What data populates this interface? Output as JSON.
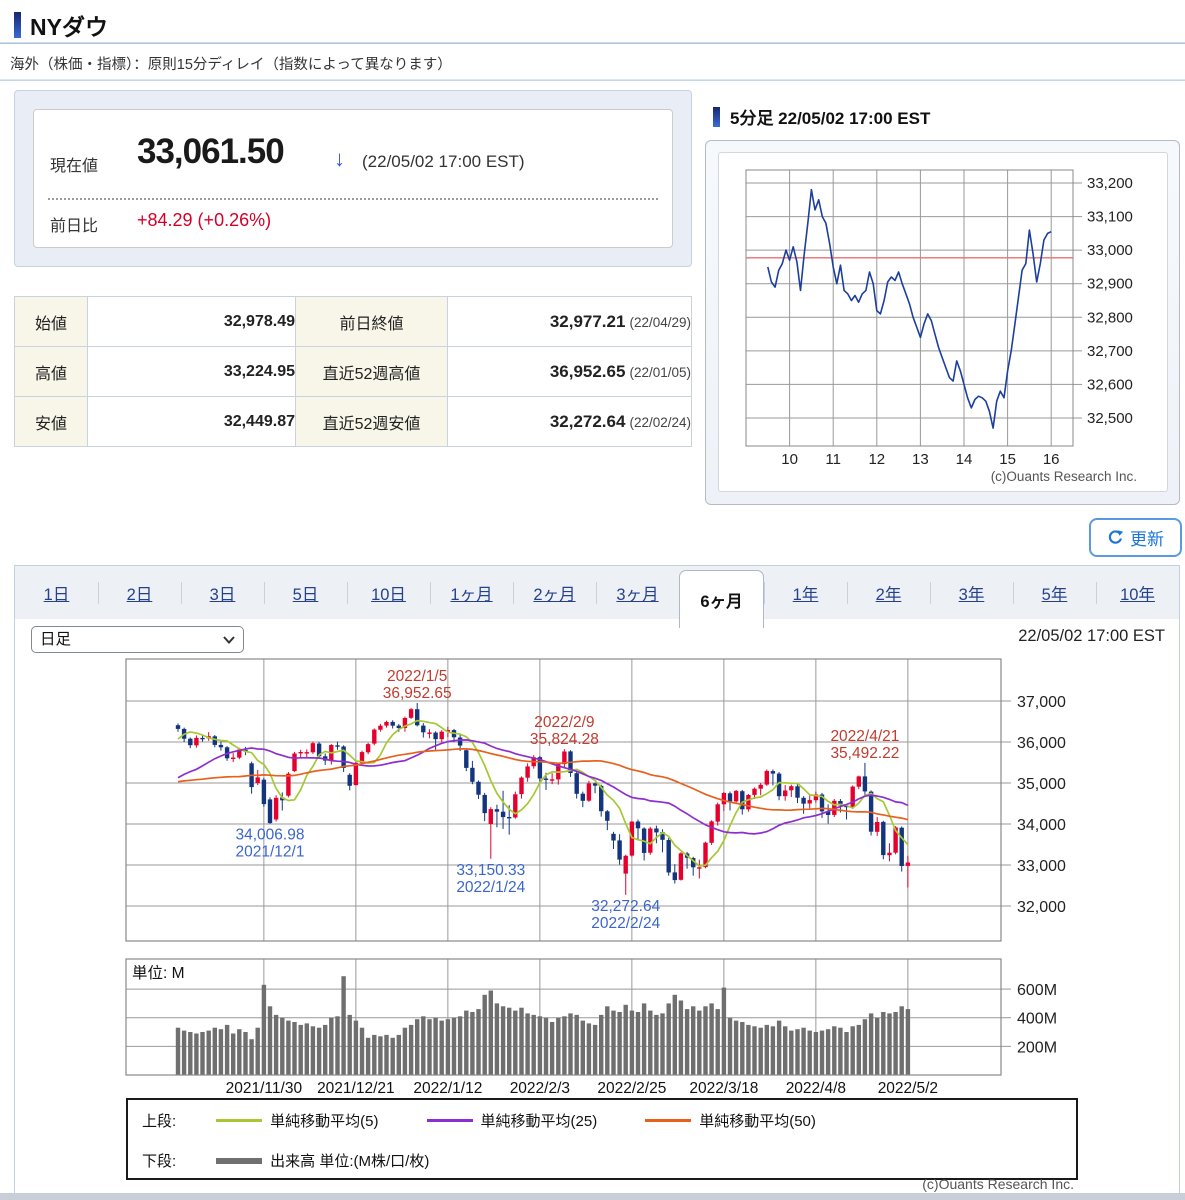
{
  "page": {
    "title": "NYダウ",
    "subtitle": "海外（株価・指標）：原則15分ディレイ（指数によって異なります）",
    "bottom_copyright": "(c)Ouants Research Inc."
  },
  "quote": {
    "current_label": "現在値",
    "current_value": "33,061.50",
    "direction_arrow": "↓",
    "timestamp": "(22/05/02 17:00 EST)",
    "change_label": "前日比",
    "change_value": "+84.29 (+0.26%)"
  },
  "stats": {
    "rows": [
      {
        "label": "始値",
        "value": "32,978.49",
        "label2": "前日終値",
        "value2": "32,977.21",
        "date2": "(22/04/29)"
      },
      {
        "label": "高値",
        "value": "33,224.95",
        "label2": "直近52週高値",
        "value2": "36,952.65",
        "date2": "(22/01/05)"
      },
      {
        "label": "安値",
        "value": "32,449.87",
        "label2": "直近52週安値",
        "value2": "32,272.64",
        "date2": "(22/02/24)"
      }
    ]
  },
  "intraday_panel": {
    "title": "5分足 22/05/02 17:00 EST",
    "copyright": "(c)Ouants Research Inc."
  },
  "refresh_label": "更新",
  "tabs": {
    "items": [
      "1日",
      "2日",
      "3日",
      "5日",
      "10日",
      "1ヶ月",
      "2ヶ月",
      "3ヶ月",
      "6ヶ月",
      "1年",
      "2年",
      "3年",
      "5年",
      "10年"
    ],
    "selected": "6ヶ月"
  },
  "controls": {
    "interval_value": "日足",
    "timestamp": "22/05/02 17:00 EST"
  },
  "legend": {
    "upper_label": "上段:",
    "upper_items": [
      {
        "label": "単純移動平均(5)",
        "color": "#a6c832"
      },
      {
        "label": "単純移動平均(25)",
        "color": "#8d2fd0"
      },
      {
        "label": "単純移動平均(50)",
        "color": "#e8611c"
      }
    ],
    "lower_label": "下段:",
    "lower_item": {
      "label": "出来高 単位:(M株/口/枚)",
      "color": "#707070"
    }
  },
  "chart_data": [
    {
      "id": "intraday",
      "type": "line",
      "title": "5分足 22/05/02 17:00 EST",
      "start_hour": 9.5,
      "interval_min": 5,
      "values": [
        32950,
        32905,
        32890,
        32940,
        32960,
        33000,
        32970,
        33010,
        32965,
        32880,
        32985,
        33080,
        33180,
        33120,
        33150,
        33100,
        33080,
        33020,
        32950,
        32900,
        32955,
        32880,
        32870,
        32850,
        32865,
        32845,
        32870,
        32880,
        32935,
        32900,
        32820,
        32810,
        32850,
        32905,
        32920,
        32910,
        32935,
        32900,
        32870,
        32840,
        32800,
        32770,
        32740,
        32780,
        32810,
        32790,
        32750,
        32710,
        32680,
        32650,
        32620,
        32610,
        32670,
        32640,
        32600,
        32560,
        32530,
        32555,
        32565,
        32560,
        32550,
        32520,
        32470,
        32550,
        32580,
        32560,
        32640,
        32700,
        32780,
        32860,
        32940,
        32960,
        33060,
        32990,
        32905,
        32960,
        33030,
        33050,
        33055
      ],
      "ref_value": 32977.21,
      "yticks": [
        {
          "v": 33200,
          "label": "33,200"
        },
        {
          "v": 33100,
          "label": "33,100"
        },
        {
          "v": 33000,
          "label": "33,000"
        },
        {
          "v": 32900,
          "label": "32,900"
        },
        {
          "v": 32800,
          "label": "32,800"
        },
        {
          "v": 32700,
          "label": "32,700"
        },
        {
          "v": 32600,
          "label": "32,600"
        },
        {
          "v": 32500,
          "label": "32,500"
        }
      ],
      "xticks": [
        10,
        11,
        12,
        13,
        14,
        15,
        16
      ],
      "line_color": "#1c3f9f",
      "ref_color": "#e87070",
      "grid_color": "#999999"
    },
    {
      "id": "daily",
      "type": "candlestick_volume",
      "period_label": "日足",
      "ohlc": [
        [
          36410,
          36450,
          36250,
          36320
        ],
        [
          36320,
          36350,
          36000,
          36080
        ],
        [
          36080,
          36110,
          35850,
          35921
        ],
        [
          35920,
          36160,
          35860,
          36100
        ],
        [
          36100,
          36170,
          36010,
          36087
        ],
        [
          36090,
          36240,
          36030,
          36142
        ],
        [
          36140,
          36170,
          35870,
          35931
        ],
        [
          35930,
          36010,
          35790,
          35871
        ],
        [
          35870,
          35900,
          35540,
          35602
        ],
        [
          35600,
          35730,
          35510,
          35619
        ],
        [
          35620,
          35860,
          35580,
          35814
        ],
        [
          35810,
          35880,
          35680,
          35804
        ],
        [
          35480,
          35520,
          34740,
          34899
        ],
        [
          35000,
          35320,
          34950,
          35136
        ],
        [
          35080,
          35120,
          34420,
          34484
        ],
        [
          34600,
          34650,
          34006.98,
          34022
        ],
        [
          34110,
          34700,
          34060,
          34640
        ],
        [
          34650,
          34770,
          34330,
          34580
        ],
        [
          34690,
          35270,
          34650,
          35227
        ],
        [
          35290,
          35760,
          35270,
          35719
        ],
        [
          35720,
          35810,
          35630,
          35755
        ],
        [
          35750,
          35820,
          35610,
          35754
        ],
        [
          35750,
          36010,
          35710,
          35971
        ],
        [
          35960,
          36000,
          35590,
          35651
        ],
        [
          35650,
          35720,
          35440,
          35544
        ],
        [
          35550,
          35950,
          35450,
          35927
        ],
        [
          35920,
          36010,
          35810,
          35898
        ],
        [
          35890,
          35920,
          35270,
          35365
        ],
        [
          35200,
          35240,
          34820,
          34932
        ],
        [
          34950,
          35530,
          34940,
          35493
        ],
        [
          35490,
          35790,
          35460,
          35754
        ],
        [
          35750,
          35980,
          35700,
          35950
        ],
        [
          35960,
          36330,
          35920,
          36302
        ],
        [
          36300,
          36440,
          36250,
          36398
        ],
        [
          36400,
          36520,
          36350,
          36488
        ],
        [
          36490,
          36530,
          36330,
          36398
        ],
        [
          36400,
          36440,
          36250,
          36338
        ],
        [
          36340,
          36620,
          36250,
          36585
        ],
        [
          36590,
          36830,
          36560,
          36800
        ],
        [
          36800,
          36952.65,
          36380,
          36407
        ],
        [
          36400,
          36460,
          36110,
          36236
        ],
        [
          36230,
          36310,
          36090,
          36232
        ],
        [
          36230,
          36260,
          35810,
          36068
        ],
        [
          36070,
          36290,
          36000,
          36252
        ],
        [
          36250,
          36370,
          36120,
          36290
        ],
        [
          36290,
          36320,
          36000,
          36114
        ],
        [
          36110,
          36180,
          35780,
          35912
        ],
        [
          35800,
          35850,
          35290,
          35369
        ],
        [
          35370,
          35540,
          34970,
          35029
        ],
        [
          35030,
          35060,
          34610,
          34715
        ],
        [
          34710,
          34760,
          34070,
          34265
        ],
        [
          34000,
          34410,
          33150.33,
          34364
        ],
        [
          34360,
          34470,
          33920,
          34298
        ],
        [
          34300,
          34810,
          33880,
          34168
        ],
        [
          34170,
          34460,
          33740,
          34161
        ],
        [
          34160,
          34790,
          34130,
          34725
        ],
        [
          34730,
          35160,
          34620,
          35132
        ],
        [
          35130,
          35480,
          35030,
          35405
        ],
        [
          35410,
          35680,
          35350,
          35629
        ],
        [
          35630,
          35660,
          34970,
          35111
        ],
        [
          35110,
          35250,
          34830,
          35090
        ],
        [
          35090,
          35240,
          34970,
          35091
        ],
        [
          35090,
          35500,
          34960,
          35462
        ],
        [
          35460,
          35824.28,
          35380,
          35768
        ],
        [
          35770,
          35800,
          35150,
          35242
        ],
        [
          35240,
          35290,
          34620,
          34738
        ],
        [
          34740,
          34790,
          34410,
          34566
        ],
        [
          34570,
          35050,
          34540,
          34989
        ],
        [
          34990,
          35010,
          34750,
          34934
        ],
        [
          34930,
          34960,
          34180,
          34312
        ],
        [
          34310,
          34340,
          33850,
          34079
        ],
        [
          33760,
          33810,
          33390,
          33597
        ],
        [
          33600,
          33750,
          33010,
          33132
        ],
        [
          32790,
          33252,
          32272.64,
          33224
        ],
        [
          33230,
          34070,
          33200,
          34059
        ],
        [
          34060,
          34110,
          33600,
          33893
        ],
        [
          33890,
          33920,
          33110,
          33295
        ],
        [
          33300,
          33930,
          33250,
          33891
        ],
        [
          33890,
          33960,
          33530,
          33795
        ],
        [
          33800,
          33870,
          33310,
          33615
        ],
        [
          33610,
          33660,
          32740,
          32817
        ],
        [
          32820,
          33020,
          32550,
          32632
        ],
        [
          32640,
          33310,
          32620,
          33286
        ],
        [
          33280,
          33320,
          32910,
          33174
        ],
        [
          33170,
          33200,
          32740,
          32944
        ],
        [
          32940,
          33130,
          32670,
          32945
        ],
        [
          32950,
          33570,
          32920,
          33544
        ],
        [
          33540,
          34090,
          33490,
          34063
        ],
        [
          34060,
          34520,
          33960,
          34481
        ],
        [
          34480,
          34780,
          34320,
          34755
        ],
        [
          34750,
          34790,
          34330,
          34553
        ],
        [
          34550,
          34830,
          34500,
          34807
        ],
        [
          34800,
          34830,
          34230,
          34358
        ],
        [
          34360,
          34730,
          34300,
          34708
        ],
        [
          34710,
          34890,
          34610,
          34861
        ],
        [
          34860,
          35000,
          34700,
          34956
        ],
        [
          34960,
          35330,
          34930,
          35294
        ],
        [
          35290,
          35330,
          34940,
          35229
        ],
        [
          35230,
          35270,
          34580,
          34678
        ],
        [
          34680,
          34950,
          34570,
          34818
        ],
        [
          34820,
          34960,
          34660,
          34921
        ],
        [
          34920,
          34970,
          34510,
          34641
        ],
        [
          34640,
          34680,
          34250,
          34497
        ],
        [
          34500,
          34720,
          34380,
          34584
        ],
        [
          34580,
          34790,
          34520,
          34721
        ],
        [
          34720,
          34760,
          34150,
          34308
        ],
        [
          34310,
          34480,
          34010,
          34220
        ],
        [
          34220,
          34610,
          34170,
          34565
        ],
        [
          34560,
          34610,
          34280,
          34451
        ],
        [
          34450,
          34490,
          34110,
          34411
        ],
        [
          34410,
          34940,
          34370,
          34911
        ],
        [
          34910,
          35180,
          34850,
          35160
        ],
        [
          35160,
          35492.22,
          34690,
          34793
        ],
        [
          34790,
          34820,
          33720,
          33811
        ],
        [
          33810,
          34170,
          33710,
          34049
        ],
        [
          34050,
          34080,
          33140,
          33240
        ],
        [
          33240,
          33530,
          33090,
          33301
        ],
        [
          33300,
          33950,
          33260,
          33916
        ],
        [
          33910,
          33940,
          32840,
          32977
        ],
        [
          32978.49,
          33224.95,
          32449.87,
          33061.5
        ]
      ],
      "volume": [
        330,
        310,
        300,
        290,
        300,
        310,
        330,
        320,
        350,
        290,
        320,
        300,
        250,
        330,
        630,
        480,
        420,
        400,
        380,
        370,
        350,
        360,
        340,
        330,
        350,
        400,
        410,
        690,
        420,
        380,
        330,
        260,
        280,
        270,
        280,
        260,
        280,
        330,
        350,
        390,
        410,
        390,
        400,
        380,
        390,
        400,
        410,
        450,
        440,
        460,
        560,
        590,
        500,
        480,
        470,
        450,
        470,
        430,
        420,
        410,
        400,
        370,
        400,
        410,
        430,
        420,
        380,
        360,
        350,
        420,
        480,
        450,
        440,
        490,
        450,
        440,
        500,
        450,
        420,
        430,
        500,
        560,
        520,
        460,
        480,
        450,
        480,
        500,
        460,
        610,
        400,
        380,
        370,
        350,
        340,
        330,
        350,
        340,
        380,
        340,
        310,
        320,
        330,
        310,
        300,
        310,
        320,
        340,
        330,
        300,
        340,
        350,
        390,
        430,
        400,
        440,
        430,
        440,
        480,
        460
      ],
      "ma_warmup_closes": [
        35366,
        35406,
        35213,
        35455,
        35120,
        35360,
        35312,
        35400,
        35369,
        35444,
        35100,
        35032,
        34880,
        34608,
        34869,
        34578,
        34751,
        34814,
        34585,
        34258,
        33970,
        34259,
        34765,
        34798,
        34692,
        34317,
        34327,
        34520,
        34026,
        33844,
        34003,
        34327,
        34391,
        34496,
        34738,
        34912,
        35295,
        35457,
        35259,
        35609,
        35673,
        35678,
        35756,
        35741,
        35490,
        35731,
        35820,
        36054,
        36328,
        36432
      ],
      "ma": [
        {
          "period": 5,
          "color": "#a6c832"
        },
        {
          "period": 25,
          "color": "#8d2fd0"
        },
        {
          "period": 50,
          "color": "#e8611c"
        }
      ],
      "yticks": [
        {
          "v": 37000,
          "label": "37,000"
        },
        {
          "v": 36000,
          "label": "36,000"
        },
        {
          "v": 35000,
          "label": "35,000"
        },
        {
          "v": 34000,
          "label": "34,000"
        },
        {
          "v": 33000,
          "label": "33,000"
        },
        {
          "v": 32000,
          "label": "32,000"
        }
      ],
      "xticks": [
        {
          "index": 14,
          "label": "2021/11/30"
        },
        {
          "index": 29,
          "label": "2021/12/21"
        },
        {
          "index": 44,
          "label": "2022/1/12"
        },
        {
          "index": 59,
          "label": "2022/2/3"
        },
        {
          "index": 74,
          "label": "2022/2/25"
        },
        {
          "index": 89,
          "label": "2022/3/18"
        },
        {
          "index": 104,
          "label": "2022/4/8"
        },
        {
          "index": 119,
          "label": "2022/5/2"
        }
      ],
      "volume_yticks": [
        {
          "v": 600,
          "label": "600M"
        },
        {
          "v": 400,
          "label": "400M"
        },
        {
          "v": 200,
          "label": "200M"
        }
      ],
      "volume_unit_label": "単位: M",
      "annotations": [
        {
          "date": "2022/1/5",
          "value_label": "36,952.65",
          "kind": "high",
          "index": 39,
          "color": "#c23b2e"
        },
        {
          "date": "2022/2/9",
          "value_label": "35,824.28",
          "kind": "high",
          "index": 63,
          "color": "#c23b2e"
        },
        {
          "date": "2022/4/21",
          "value_label": "35,492.22",
          "kind": "high",
          "index": 112,
          "color": "#c23b2e"
        },
        {
          "date": "2021/12/1",
          "value_label": "34,006.98",
          "kind": "low",
          "index": 15,
          "color": "#3b66cc"
        },
        {
          "date": "2022/1/24",
          "value_label": "33,150.33",
          "kind": "low",
          "index": 51,
          "color": "#3b66cc"
        },
        {
          "date": "2022/2/24",
          "value_label": "32,272.64",
          "kind": "low",
          "index": 73,
          "color": "#3b66cc"
        }
      ],
      "up_color": "#e5002d",
      "down_color": "#12357e",
      "volume_color": "#6f6f6f",
      "grid_color": "#999999"
    }
  ]
}
